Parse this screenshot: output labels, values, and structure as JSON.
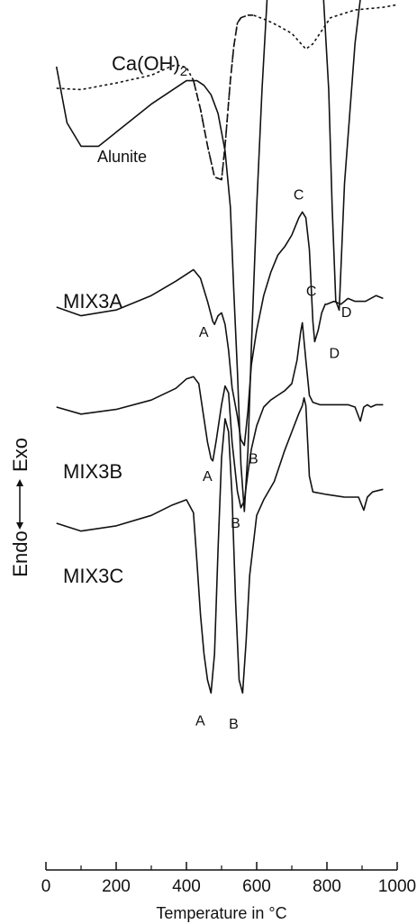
{
  "chart_data": {
    "type": "line",
    "title": "",
    "xlabel_main": "Temperature in ",
    "xlabel_unit": "°C",
    "ylabel_exo": "Exo",
    "ylabel_endo": "Endo",
    "xlim": [
      0,
      1000
    ],
    "xticks": [
      "0",
      "200",
      "400",
      "600",
      "800",
      "1000"
    ],
    "grid": false,
    "legend": "none",
    "series": [
      {
        "name": "Ca(OH)",
        "name_sub": "2",
        "style": "dotted-dashed",
        "x": [
          30,
          100,
          200,
          300,
          350,
          370,
          400,
          420,
          440,
          460,
          480,
          500,
          510,
          525,
          535,
          545,
          555,
          575,
          590,
          630,
          660,
          700,
          740,
          760,
          780,
          810,
          880,
          960,
          1000
        ],
        "y": [
          0,
          -0.05,
          0.2,
          0.5,
          0.8,
          0.9,
          0.8,
          0.3,
          -0.8,
          -2.2,
          -3.4,
          -3.5,
          -2.2,
          0.3,
          1.6,
          2.5,
          2.7,
          2.8,
          2.8,
          2.6,
          2.4,
          2.1,
          1.5,
          1.7,
          2.1,
          2.7,
          3.0,
          3.1,
          3.2
        ],
        "peaks": []
      },
      {
        "name": "Alunite",
        "style": "solid",
        "x": [
          30,
          60,
          100,
          150,
          200,
          300,
          400,
          430,
          450,
          470,
          490,
          510,
          525,
          535,
          545,
          555,
          565,
          575,
          585,
          600,
          615,
          630,
          650,
          680,
          700,
          730,
          760,
          790,
          805,
          815,
          825,
          835,
          850,
          880,
          920,
          960
        ],
        "y": [
          2.0,
          0.8,
          0.3,
          0.3,
          0.6,
          1.2,
          1.7,
          1.7,
          1.6,
          1.4,
          1.0,
          0.2,
          -1.0,
          -2.8,
          -4.5,
          -6.5,
          -7.5,
          -6.2,
          -4.0,
          -1.0,
          1.5,
          3.5,
          4.3,
          4.4,
          4.3,
          4.3,
          4.2,
          3.5,
          1.5,
          -1.0,
          -3.0,
          -3.2,
          -0.5,
          2.5,
          5.0,
          6.5
        ],
        "peaks": [
          {
            "label": "D",
            "x": 830
          }
        ]
      },
      {
        "name": "MIX3A",
        "style": "solid",
        "x": [
          30,
          100,
          200,
          300,
          370,
          420,
          440,
          460,
          475,
          480,
          490,
          500,
          510,
          520,
          530,
          545,
          555,
          565,
          575,
          585,
          600,
          620,
          640,
          660,
          680,
          700,
          720,
          730,
          740,
          750,
          760,
          765,
          775,
          785,
          795,
          800,
          820,
          840,
          860,
          880,
          910,
          940,
          960
        ],
        "y": [
          0,
          -0.3,
          -0.1,
          0.4,
          0.9,
          1.3,
          1.0,
          0.2,
          -0.5,
          -0.6,
          -0.3,
          -0.2,
          -0.6,
          -1.5,
          -2.8,
          -3.8,
          -4.6,
          -4.8,
          -3.6,
          -2.0,
          -0.8,
          0.4,
          1.2,
          1.8,
          2.1,
          2.5,
          3.1,
          3.3,
          3.1,
          2.0,
          -0.5,
          -1.2,
          -0.8,
          -0.2,
          0.1,
          0.1,
          0.2,
          0.1,
          0.3,
          0.2,
          0.2,
          0.4,
          0.3
        ],
        "peaks": [
          {
            "label": "A",
            "x": 480
          },
          {
            "label": "B",
            "x": 565
          },
          {
            "label": "C",
            "x": 735
          },
          {
            "label": "D",
            "x": 770
          }
        ]
      },
      {
        "name": "MIX3B",
        "style": "solid",
        "x": [
          30,
          100,
          200,
          300,
          370,
          400,
          420,
          435,
          450,
          460,
          470,
          475,
          485,
          500,
          510,
          520,
          530,
          545,
          555,
          565,
          575,
          585,
          600,
          620,
          640,
          660,
          680,
          700,
          715,
          725,
          730,
          740,
          750,
          760,
          780,
          820,
          860,
          880,
          895,
          905,
          915,
          925,
          940,
          960
        ],
        "y": [
          0,
          -0.3,
          -0.1,
          0.3,
          0.8,
          1.2,
          1.3,
          1.0,
          -0.5,
          -1.5,
          -2.2,
          -2.3,
          -1.4,
          0.1,
          0.9,
          0.6,
          -1.5,
          -3.6,
          -4.3,
          -4.0,
          -2.8,
          -1.8,
          -0.8,
          0.0,
          0.3,
          0.5,
          0.7,
          1.0,
          2.0,
          3.2,
          3.6,
          2.0,
          0.5,
          0.2,
          0.1,
          0.1,
          0.1,
          0.0,
          -0.6,
          0.0,
          0.1,
          0.0,
          0.1,
          0.1
        ],
        "peaks": [
          {
            "label": "A",
            "x": 475
          },
          {
            "label": "B",
            "x": 560
          },
          {
            "label": "C",
            "x": 735
          }
        ]
      },
      {
        "name": "MIX3C",
        "style": "solid",
        "x": [
          30,
          100,
          200,
          300,
          360,
          400,
          420,
          430,
          440,
          450,
          460,
          470,
          480,
          490,
          500,
          510,
          520,
          530,
          540,
          550,
          560,
          570,
          580,
          600,
          620,
          650,
          680,
          700,
          720,
          730,
          735,
          740,
          750,
          760,
          800,
          850,
          890,
          905,
          915,
          930,
          960
        ],
        "y": [
          0,
          -0.3,
          -0.1,
          0.3,
          0.7,
          0.9,
          0.4,
          -1.5,
          -3.5,
          -5.0,
          -6.0,
          -6.5,
          -5.0,
          -1.0,
          2.5,
          4.0,
          3.5,
          1.0,
          -3.0,
          -6.0,
          -6.5,
          -4.5,
          -2.0,
          0.3,
          0.9,
          1.6,
          2.8,
          3.5,
          4.2,
          4.5,
          4.8,
          4.5,
          1.8,
          1.2,
          1.1,
          1.0,
          1.0,
          0.5,
          1.0,
          1.2,
          1.3
        ],
        "peaks": [
          {
            "label": "A",
            "x": 470
          },
          {
            "label": "B",
            "x": 555
          }
        ]
      }
    ]
  }
}
